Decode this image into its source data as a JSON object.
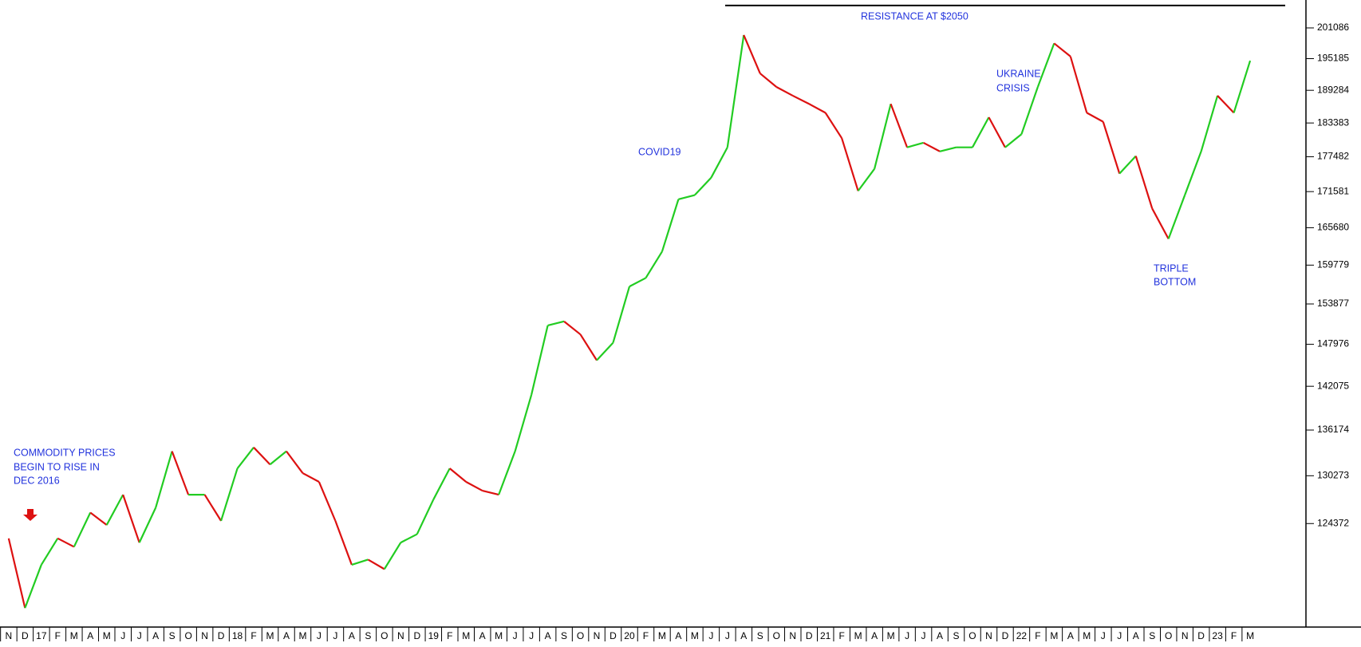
{
  "chart_data": {
    "type": "line",
    "log_scale": true,
    "categories": [
      "N",
      "D",
      "17",
      "F",
      "M",
      "A",
      "M",
      "J",
      "J",
      "A",
      "S",
      "O",
      "N",
      "D",
      "18",
      "F",
      "M",
      "A",
      "M",
      "J",
      "J",
      "A",
      "S",
      "O",
      "N",
      "D",
      "19",
      "F",
      "M",
      "A",
      "M",
      "J",
      "J",
      "A",
      "S",
      "O",
      "N",
      "D",
      "20",
      "F",
      "M",
      "A",
      "M",
      "J",
      "J",
      "A",
      "S",
      "O",
      "N",
      "D",
      "21",
      "F",
      "M",
      "A",
      "M",
      "J",
      "J",
      "A",
      "S",
      "O",
      "N",
      "D",
      "22",
      "F",
      "M",
      "A",
      "M",
      "J",
      "J",
      "A",
      "S",
      "O",
      "N",
      "D",
      "23",
      "F",
      "M"
    ],
    "values": [
      122600,
      114600,
      119500,
      122600,
      121600,
      125700,
      124200,
      127900,
      122100,
      126300,
      133400,
      127900,
      127900,
      124700,
      131200,
      133900,
      131700,
      133400,
      130600,
      129500,
      124700,
      119500,
      120100,
      119000,
      122100,
      123100,
      127300,
      131200,
      129500,
      128400,
      127900,
      133400,
      140900,
      150700,
      151300,
      149400,
      145700,
      148200,
      156500,
      157800,
      161900,
      170300,
      171000,
      173900,
      179100,
      199700,
      192400,
      189900,
      188300,
      186800,
      185200,
      180700,
      171700,
      175400,
      186800,
      179100,
      179900,
      178400,
      179100,
      179100,
      184400,
      179100,
      181400,
      189900,
      198100,
      195600,
      185200,
      183600,
      174600,
      177600,
      168800,
      163900,
      171000,
      178400,
      188300,
      185200,
      194800
    ],
    "up_color": "#22cc22",
    "down_color": "#dd1111",
    "ylim": [
      112500,
      206600
    ],
    "yticks": [
      124372,
      130273,
      136174,
      142075,
      147976,
      153877,
      159779,
      165680,
      171581,
      177482,
      183383,
      189284,
      195185,
      201086
    ],
    "resistance": 205500,
    "annotations": [
      {
        "lines": [
          "COMMODITY PRICES",
          "BEGIN TO RISE IN",
          "DEC 2016"
        ]
      },
      {
        "lines": [
          "COVID19"
        ]
      },
      {
        "lines": [
          "RESISTANCE AT $2050"
        ]
      },
      {
        "lines": [
          "UKRAINE",
          "CRISIS"
        ]
      },
      {
        "lines": [
          "TRIPLE",
          "BOTTOM"
        ]
      }
    ]
  }
}
